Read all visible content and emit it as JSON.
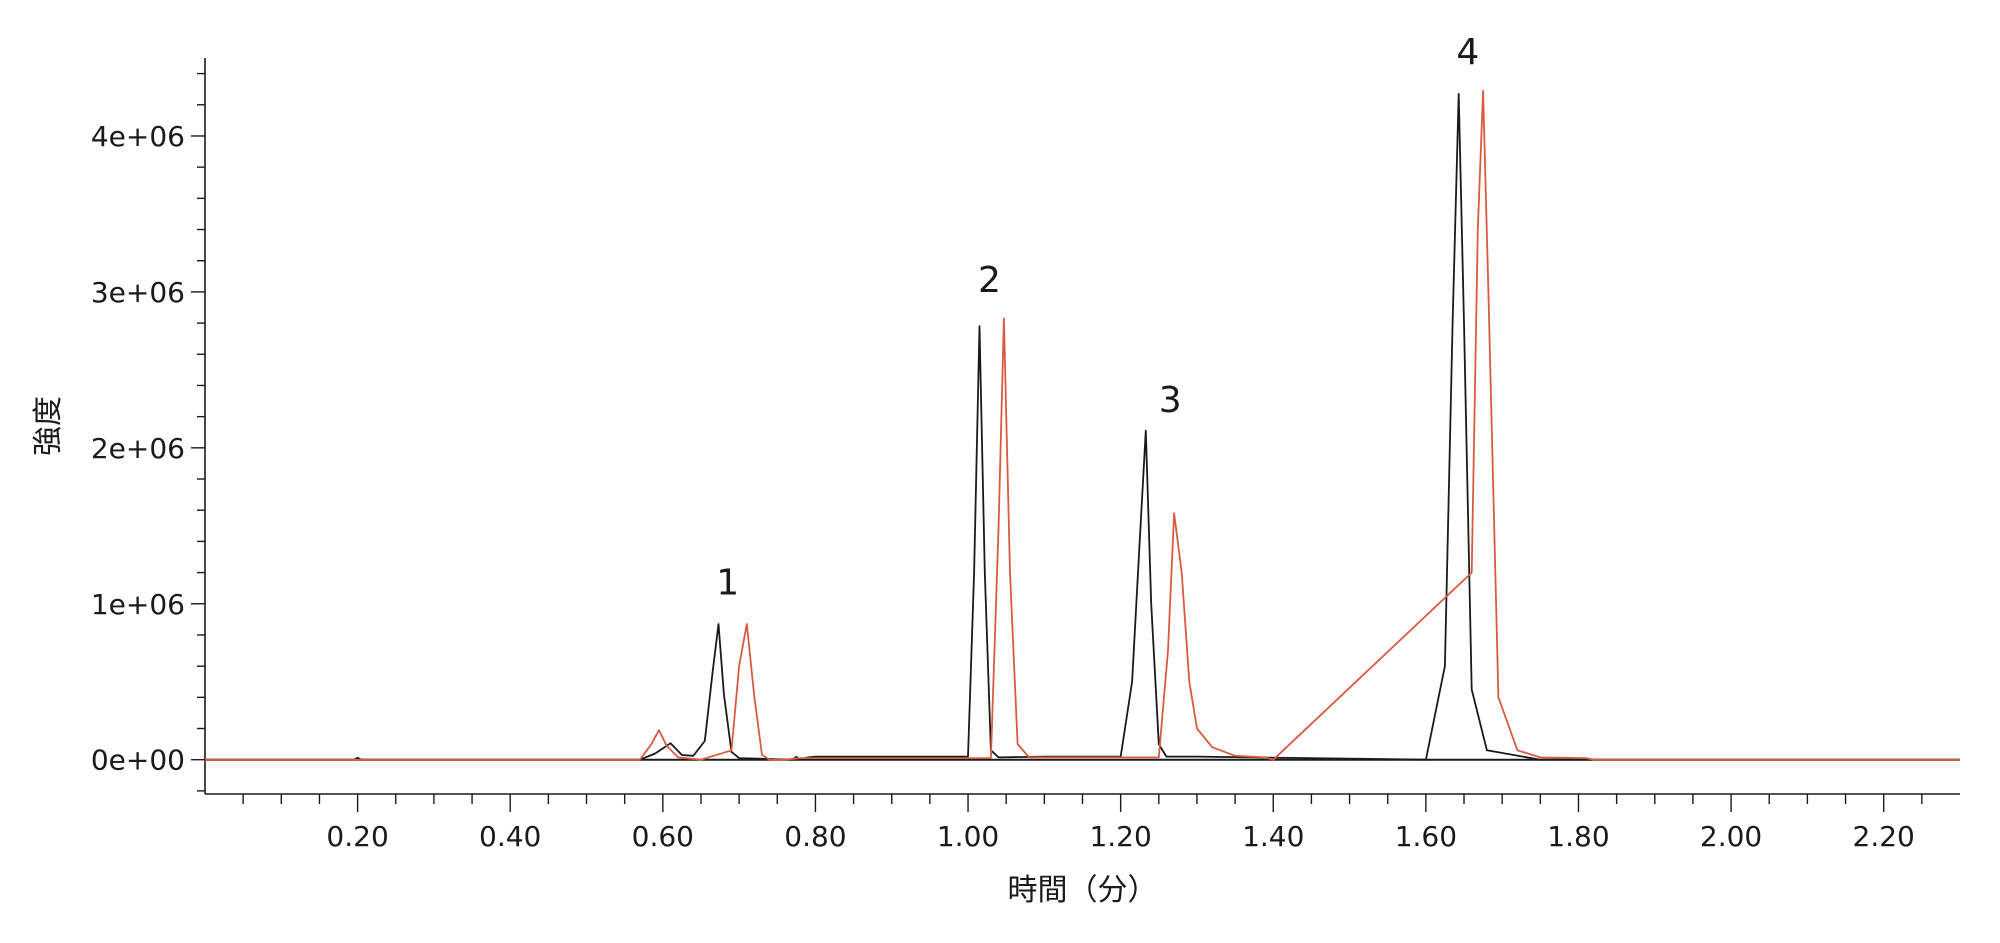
{
  "chart_data": {
    "type": "line",
    "xlabel": "時間（分）",
    "ylabel": "強度",
    "xlim": [
      0.0,
      2.3
    ],
    "ylim": [
      -220000,
      4500000
    ],
    "x_ticks": [
      {
        "value": 0.2,
        "label": "0.20"
      },
      {
        "value": 0.4,
        "label": "0.40"
      },
      {
        "value": 0.6,
        "label": "0.60"
      },
      {
        "value": 0.8,
        "label": "0.80"
      },
      {
        "value": 1.0,
        "label": "1.00"
      },
      {
        "value": 1.2,
        "label": "1.20"
      },
      {
        "value": 1.4,
        "label": "1.40"
      },
      {
        "value": 1.6,
        "label": "1.60"
      },
      {
        "value": 1.8,
        "label": "1.80"
      },
      {
        "value": 2.0,
        "label": "2.00"
      },
      {
        "value": 2.2,
        "label": "2.20"
      }
    ],
    "y_ticks": [
      {
        "value": 0,
        "label": "0e+00"
      },
      {
        "value": 1000000,
        "label": "1e+06"
      },
      {
        "value": 2000000,
        "label": "2e+06"
      },
      {
        "value": 3000000,
        "label": "3e+06"
      },
      {
        "value": 4000000,
        "label": "4e+06"
      }
    ],
    "grid": false,
    "series": [
      {
        "color": "#1a1a1a",
        "x": [
          0.0,
          0.195,
          0.2,
          0.205,
          0.57,
          0.59,
          0.61,
          0.625,
          0.64,
          0.655,
          0.665,
          0.673,
          0.68,
          0.69,
          0.7,
          0.77,
          0.775,
          0.78,
          0.79,
          0.8,
          1.0,
          1.008,
          1.015,
          1.022,
          1.03,
          1.04,
          1.1,
          1.2,
          1.215,
          1.225,
          1.233,
          1.24,
          1.25,
          1.26,
          1.3,
          1.6,
          1.625,
          1.635,
          1.643,
          1.65,
          1.66,
          1.68,
          1.75,
          2.3
        ],
        "y": [
          0,
          0,
          12000,
          0,
          0,
          40000,
          105000,
          30000,
          25000,
          120000,
          550000,
          870000,
          420000,
          50000,
          10000,
          0,
          18000,
          0,
          15000,
          20000,
          20000,
          1200000,
          2780000,
          1200000,
          60000,
          15000,
          20000,
          20000,
          500000,
          1400000,
          2110000,
          1000000,
          100000,
          20000,
          20000,
          0,
          600000,
          2800000,
          4270000,
          2800000,
          450000,
          60000,
          0,
          0
        ]
      },
      {
        "color": "#d95a42",
        "x": [
          0.0,
          0.57,
          0.585,
          0.595,
          0.605,
          0.62,
          0.65,
          0.69,
          0.7,
          0.71,
          0.72,
          0.73,
          0.74,
          0.76,
          0.78,
          1.03,
          1.04,
          1.047,
          1.055,
          1.065,
          1.08,
          1.1,
          1.25,
          1.262,
          1.27,
          1.28,
          1.29,
          1.3,
          1.32,
          1.35,
          1.39,
          1.4,
          1.66,
          1.668,
          1.675,
          1.682,
          1.695,
          1.72,
          1.75,
          1.81,
          1.82,
          2.3
        ],
        "y": [
          0,
          0,
          100000,
          190000,
          90000,
          15000,
          0,
          60000,
          600000,
          870000,
          400000,
          30000,
          0,
          0,
          10000,
          10000,
          1500000,
          2830000,
          1200000,
          100000,
          15000,
          15000,
          15000,
          700000,
          1580000,
          1200000,
          500000,
          200000,
          80000,
          25000,
          15000,
          0,
          1200000,
          3400000,
          4290000,
          3000000,
          400000,
          60000,
          15000,
          10000,
          0,
          0
        ]
      }
    ],
    "annotations": [
      {
        "text": "1",
        "x": 0.685,
        "y": 1060000
      },
      {
        "text": "2",
        "x": 1.028,
        "y": 3000000
      },
      {
        "text": "3",
        "x": 1.265,
        "y": 2230000
      },
      {
        "text": "4",
        "x": 1.655,
        "y": 4460000
      }
    ]
  }
}
